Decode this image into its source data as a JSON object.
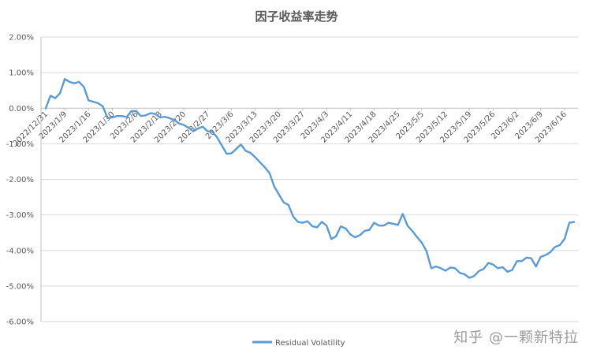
{
  "watermark": "知乎 @一颗新特拉",
  "chart_data": {
    "type": "line",
    "title": "因子收益率走势",
    "xlabel": "",
    "ylabel": "",
    "ylim": [
      -6.0,
      2.0
    ],
    "yticks": [
      2.0,
      1.0,
      0.0,
      -1.0,
      -2.0,
      -3.0,
      -4.0,
      -5.0,
      -6.0
    ],
    "ytick_labels": [
      "2.00%",
      "1.00%",
      "0.00%",
      "-1.00%",
      "-2.00%",
      "-3.00%",
      "-4.00%",
      "-5.00%",
      "-6.00%"
    ],
    "x_tick_labels": [
      "2022/12/31",
      "2023/1/9",
      "2023/1/16",
      "2023/1/30",
      "2023/2/6",
      "2023/2/13",
      "2023/2/20",
      "2023/2/27",
      "2023/3/6",
      "2023/3/13",
      "2023/3/20",
      "2023/3/27",
      "2023/4/3",
      "2023/4/11",
      "2023/4/18",
      "2023/4/25",
      "2023/5/5",
      "2023/5/12",
      "2023/5/19",
      "2023/5/26",
      "2023/6/2",
      "2023/6/9",
      "2023/6/16"
    ],
    "x_tick_indices": [
      0,
      4,
      9,
      14,
      19,
      24,
      29,
      34,
      39,
      44,
      49,
      54,
      59,
      64,
      69,
      74,
      79,
      84,
      89,
      94,
      99,
      104,
      109
    ],
    "grid": true,
    "legend_position": "bottom",
    "series": [
      {
        "name": "Residual Volatility",
        "color": "#5b9bd5",
        "values": [
          0.0,
          0.35,
          0.28,
          0.42,
          0.82,
          0.74,
          0.7,
          0.74,
          0.6,
          0.22,
          0.18,
          0.14,
          0.05,
          -0.28,
          -0.26,
          -0.22,
          -0.22,
          -0.25,
          -0.08,
          -0.08,
          -0.22,
          -0.2,
          -0.14,
          -0.16,
          -0.26,
          -0.24,
          -0.28,
          -0.33,
          -0.43,
          -0.47,
          -0.55,
          -0.65,
          -0.57,
          -0.52,
          -0.65,
          -0.66,
          -0.82,
          -1.05,
          -1.28,
          -1.27,
          -1.15,
          -1.02,
          -1.2,
          -1.25,
          -1.38,
          -1.52,
          -1.66,
          -1.82,
          -2.2,
          -2.43,
          -2.65,
          -2.72,
          -3.05,
          -3.2,
          -3.22,
          -3.18,
          -3.32,
          -3.35,
          -3.2,
          -3.3,
          -3.68,
          -3.6,
          -3.32,
          -3.38,
          -3.55,
          -3.63,
          -3.57,
          -3.45,
          -3.42,
          -3.22,
          -3.3,
          -3.3,
          -3.22,
          -3.25,
          -3.28,
          -2.97,
          -3.3,
          -3.45,
          -3.62,
          -3.78,
          -4.02,
          -4.5,
          -4.45,
          -4.5,
          -4.57,
          -4.48,
          -4.5,
          -4.63,
          -4.67,
          -4.77,
          -4.72,
          -4.58,
          -4.52,
          -4.35,
          -4.4,
          -4.5,
          -4.47,
          -4.6,
          -4.55,
          -4.3,
          -4.3,
          -4.2,
          -4.22,
          -4.45,
          -4.18,
          -4.13,
          -4.05,
          -3.9,
          -3.85,
          -3.68,
          -3.22,
          -3.2
        ]
      }
    ]
  }
}
